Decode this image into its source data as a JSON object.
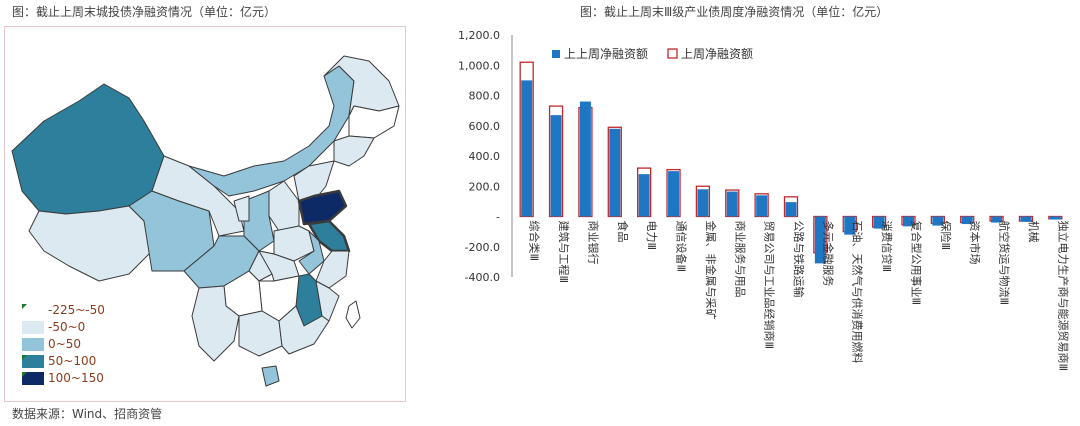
{
  "map_title": "图：截止上周末城投债净融资情况（单位：亿元）",
  "chart_title": "图：截止上周末Ⅲ级产业债周度净融资情况（单位：亿元）",
  "source": "数据来源：Wind、招商资管",
  "map_legend": [
    {
      "label": "-225~-50",
      "color": "#ffffff"
    },
    {
      "label": "-50~0",
      "color": "#dce9f1"
    },
    {
      "label": "0~50",
      "color": "#93c4da"
    },
    {
      "label": "50~100",
      "color": "#2e7f9b"
    },
    {
      "label": "100~150",
      "color": "#0d2a66"
    }
  ],
  "colors": {
    "prev_week": "#1f77c4",
    "last_week_border": "#c0282d"
  },
  "chart_data": {
    "type": "bar",
    "title": "图：截止上周末Ⅲ级产业债周度净融资情况（单位：亿元）",
    "legend_position": "top",
    "ylim": [
      -400,
      1200
    ],
    "yticks": [
      "1,200.0",
      "1,000.0",
      "800.0",
      "600.0",
      "400.0",
      "200.0",
      "-",
      "-200.0",
      "-400.0"
    ],
    "categories": [
      "综合类Ⅲ",
      "建筑与工程Ⅲ",
      "商业银行",
      "食品",
      "电力Ⅲ",
      "通信设备Ⅲ",
      "金属、非金属与采矿",
      "商业服务与用品",
      "贸易公司与工业品经销商Ⅲ",
      "公路与铁路运输",
      "多元金融服务",
      "石油、天然气与供消费用燃料",
      "消费信贷Ⅲ",
      "复合型公用事业Ⅲ",
      "保险Ⅲ",
      "资本市场",
      "航空货运与物流Ⅲ",
      "机械",
      "独立电力生产商与能源贸易商Ⅲ"
    ],
    "series": [
      {
        "name": "上上周净融资额",
        "values": [
          900,
          670,
          760,
          580,
          280,
          300,
          180,
          165,
          140,
          95,
          -310,
          -120,
          -80,
          -65,
          -60,
          -50,
          -40,
          -35,
          -20
        ]
      },
      {
        "name": "上周净融资额",
        "values": [
          1020,
          730,
          720,
          590,
          320,
          310,
          200,
          175,
          150,
          130,
          -240,
          -100,
          -70,
          -55,
          -45,
          -40,
          -30,
          -30,
          -15
        ]
      }
    ]
  }
}
